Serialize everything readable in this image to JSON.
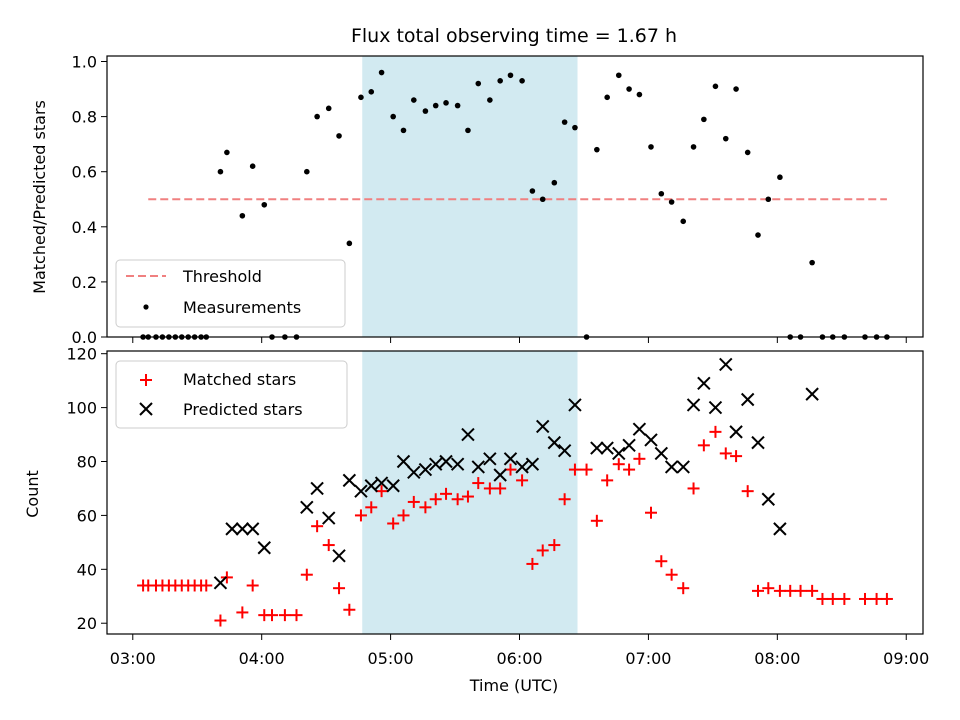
{
  "chart_data": {
    "type": "scatter",
    "title": "Flux total observing time = 1.67 h",
    "xlabel": "Time (UTC)",
    "x_ticks": [
      "03:00",
      "04:00",
      "05:00",
      "06:00",
      "07:00",
      "08:00",
      "09:00"
    ],
    "x_tick_hours": [
      3,
      4,
      5,
      6,
      7,
      8,
      9
    ],
    "xlim_hours": [
      2.8,
      9.13
    ],
    "shaded_interval_hours": [
      4.78,
      6.45
    ],
    "shade_color": "#add8e6",
    "panels": [
      {
        "id": "ratio",
        "ylabel": "Matched/Predicted stars",
        "ylim": [
          0,
          1.02
        ],
        "yticks": [
          "0.0",
          "0.2",
          "0.4",
          "0.6",
          "0.8",
          "1.0"
        ],
        "ytick_values": [
          0,
          0.2,
          0.4,
          0.6,
          0.8,
          1.0
        ],
        "legend": {
          "placement": "lower-left",
          "entries": [
            "Threshold",
            "Measurements"
          ]
        },
        "series": [
          {
            "name": "Threshold",
            "style": "dashed-line",
            "color": "#f08080",
            "x": [
              3.12,
              8.85
            ],
            "y": [
              0.5,
              0.5
            ]
          },
          {
            "name": "Measurements",
            "style": "dot",
            "color": "#000000",
            "x": [
              3.08,
              3.12,
              3.18,
              3.23,
              3.28,
              3.33,
              3.38,
              3.43,
              3.48,
              3.53,
              3.57,
              3.68,
              3.73,
              3.85,
              3.93,
              4.02,
              4.08,
              4.18,
              4.27,
              4.35,
              4.43,
              4.52,
              4.6,
              4.68,
              4.77,
              4.85,
              4.93,
              5.02,
              5.1,
              5.18,
              5.27,
              5.35,
              5.43,
              5.52,
              5.6,
              5.68,
              5.77,
              5.85,
              5.93,
              6.02,
              6.1,
              6.18,
              6.27,
              6.35,
              6.43,
              6.52,
              6.6,
              6.68,
              6.77,
              6.85,
              6.93,
              7.02,
              7.1,
              7.18,
              7.27,
              7.35,
              7.43,
              7.52,
              7.6,
              7.68,
              7.77,
              7.85,
              7.93,
              8.02,
              8.1,
              8.18,
              8.27,
              8.35,
              8.43,
              8.52,
              8.68,
              8.77,
              8.85
            ],
            "y": [
              0.0,
              0.0,
              0.0,
              0.0,
              0.0,
              0.0,
              0.0,
              0.0,
              0.0,
              0.0,
              0.0,
              0.6,
              0.67,
              0.44,
              0.62,
              0.48,
              0.0,
              0.0,
              0.0,
              0.6,
              0.8,
              0.83,
              0.73,
              0.34,
              0.87,
              0.89,
              0.96,
              0.8,
              0.75,
              0.86,
              0.82,
              0.84,
              0.85,
              0.84,
              0.75,
              0.92,
              0.86,
              0.93,
              0.95,
              0.93,
              0.53,
              0.5,
              0.56,
              0.78,
              0.76,
              0.0,
              0.68,
              0.87,
              0.95,
              0.9,
              0.88,
              0.69,
              0.52,
              0.49,
              0.42,
              0.69,
              0.79,
              0.91,
              0.72,
              0.9,
              0.67,
              0.37,
              0.5,
              0.58,
              0.0,
              0.0,
              0.27,
              0.0,
              0.0,
              0.0,
              0.0,
              0.0,
              0.0
            ]
          }
        ]
      },
      {
        "id": "count",
        "ylabel": "Count",
        "ylim": [
          16,
          121
        ],
        "yticks": [
          "20",
          "40",
          "60",
          "80",
          "100",
          "120"
        ],
        "ytick_values": [
          20,
          40,
          60,
          80,
          100,
          120
        ],
        "legend": {
          "placement": "upper-left",
          "entries": [
            "Matched stars",
            "Predicted stars"
          ]
        },
        "series": [
          {
            "name": "Matched stars",
            "style": "plus",
            "color": "#ff0000",
            "x": [
              3.08,
              3.12,
              3.18,
              3.23,
              3.28,
              3.33,
              3.38,
              3.43,
              3.48,
              3.53,
              3.57,
              3.68,
              3.73,
              3.85,
              3.93,
              4.02,
              4.08,
              4.18,
              4.27,
              4.35,
              4.43,
              4.52,
              4.6,
              4.68,
              4.77,
              4.85,
              4.93,
              5.02,
              5.1,
              5.18,
              5.27,
              5.35,
              5.43,
              5.52,
              5.6,
              5.68,
              5.77,
              5.85,
              5.93,
              6.02,
              6.1,
              6.18,
              6.27,
              6.35,
              6.43,
              6.52,
              6.6,
              6.68,
              6.77,
              6.85,
              6.93,
              7.02,
              7.1,
              7.18,
              7.27,
              7.35,
              7.43,
              7.52,
              7.6,
              7.68,
              7.77,
              7.85,
              7.93,
              8.02,
              8.1,
              8.18,
              8.27,
              8.35,
              8.43,
              8.52,
              8.68,
              8.77,
              8.85
            ],
            "y": [
              34,
              34,
              34,
              34,
              34,
              34,
              34,
              34,
              34,
              34,
              34,
              21,
              37,
              24,
              34,
              23,
              23,
              23,
              23,
              38,
              56,
              49,
              33,
              25,
              60,
              63,
              69,
              57,
              60,
              65,
              63,
              66,
              68,
              66,
              67,
              72,
              70,
              70,
              77,
              73,
              42,
              47,
              49,
              66,
              77,
              77,
              58,
              73,
              79,
              77,
              81,
              61,
              43,
              38,
              33,
              70,
              86,
              91,
              83,
              82,
              69,
              32,
              33,
              32,
              32,
              32,
              32,
              29,
              29,
              29,
              29,
              29,
              29
            ]
          },
          {
            "name": "Predicted stars",
            "style": "x",
            "color": "#000000",
            "x": [
              3.68,
              3.77,
              3.85,
              3.93,
              4.02,
              4.35,
              4.43,
              4.52,
              4.6,
              4.68,
              4.77,
              4.85,
              4.93,
              5.02,
              5.1,
              5.18,
              5.27,
              5.35,
              5.43,
              5.52,
              5.6,
              5.68,
              5.77,
              5.85,
              5.93,
              6.02,
              6.1,
              6.18,
              6.27,
              6.35,
              6.43,
              6.6,
              6.68,
              6.77,
              6.85,
              6.93,
              7.02,
              7.1,
              7.18,
              7.27,
              7.35,
              7.43,
              7.52,
              7.6,
              7.68,
              7.77,
              7.85,
              7.93,
              8.02,
              8.27
            ],
            "y": [
              35,
              55,
              55,
              55,
              48,
              63,
              70,
              59,
              45,
              73,
              69,
              71,
              72,
              71,
              80,
              76,
              77,
              79,
              80,
              79,
              90,
              78,
              81,
              75,
              81,
              78,
              79,
              93,
              87,
              84,
              101,
              85,
              85,
              83,
              86,
              92,
              88,
              83,
              78,
              78,
              101,
              109,
              100,
              116,
              91,
              103,
              87,
              66,
              55,
              105
            ]
          }
        ]
      }
    ]
  }
}
